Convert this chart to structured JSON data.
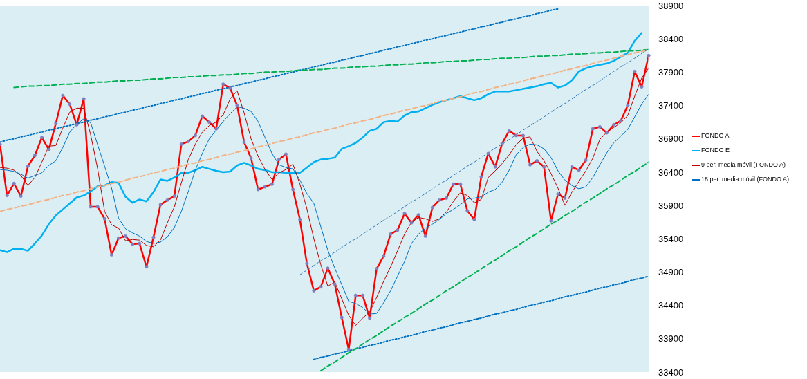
{
  "chart_data": {
    "type": "line",
    "ylim": [
      33400,
      38900
    ],
    "yticks": [
      33400,
      33900,
      34400,
      34900,
      35400,
      35900,
      36400,
      36900,
      37400,
      37900,
      38400,
      38900
    ],
    "tick_labels": "y",
    "legend": "right",
    "categories": [
      null,
      null,
      null,
      null,
      null,
      null,
      null,
      null,
      null,
      null,
      null,
      null,
      null,
      null,
      null,
      null,
      null,
      null,
      null,
      null,
      null,
      null,
      null,
      null,
      null,
      null,
      null,
      null,
      null,
      null,
      null,
      null,
      null,
      null,
      null,
      null,
      null,
      null,
      null,
      null,
      null,
      null,
      null,
      null,
      null,
      null,
      null,
      null,
      null,
      null,
      null,
      null,
      null,
      null,
      null,
      null,
      null,
      null,
      null,
      null,
      null,
      null,
      null,
      null,
      null,
      null,
      null,
      null,
      null,
      null,
      null,
      null,
      null,
      null,
      null,
      null,
      null,
      null,
      null,
      null,
      null,
      null,
      null,
      null,
      null,
      null,
      null,
      null,
      null,
      null,
      null,
      null,
      null,
      null
    ],
    "series": [
      {
        "name": "FONDO A",
        "color": "#ff0000",
        "marker": "circle",
        "line_style": "solid",
        "values": [
          36820,
          36050,
          36230,
          36040,
          36490,
          36650,
          36920,
          36740,
          37130,
          37550,
          37420,
          37110,
          37500,
          35880,
          35880,
          35700,
          35160,
          35410,
          35440,
          35320,
          35330,
          34980,
          35420,
          35910,
          35980,
          36040,
          36820,
          36860,
          36950,
          37240,
          37150,
          37050,
          37720,
          37660,
          37400,
          36850,
          36610,
          36140,
          36180,
          36220,
          36590,
          36670,
          36140,
          35690,
          35030,
          34620,
          34680,
          34960,
          34720,
          34220,
          33740,
          34550,
          34550,
          34210,
          34950,
          35140,
          35470,
          35530,
          35780,
          35640,
          35760,
          35440,
          35870,
          35980,
          36010,
          36220,
          36220,
          35820,
          35690,
          36330,
          36680,
          36480,
          36830,
          37020,
          36950,
          36950,
          36510,
          36570,
          36480,
          35670,
          36070,
          36010,
          36480,
          36430,
          36580,
          37050,
          37080,
          36990,
          37110,
          37170,
          37400,
          37910,
          37680,
          38150
        ]
      },
      {
        "name": "FONDO E",
        "color": "#00b0f0",
        "line_style": "solid",
        "values": [
          35230,
          35200,
          35250,
          35250,
          35220,
          35330,
          35450,
          35620,
          35750,
          35840,
          35930,
          36020,
          36050,
          36110,
          36190,
          36200,
          36250,
          36240,
          36030,
          35940,
          35990,
          35960,
          36100,
          36290,
          36270,
          36320,
          36390,
          36390,
          36430,
          36480,
          36450,
          36420,
          36400,
          36410,
          36500,
          36540,
          36500,
          36450,
          36430,
          36400,
          36400,
          36390,
          36390,
          36390,
          36470,
          36550,
          36590,
          36600,
          36620,
          36750,
          36790,
          36840,
          36920,
          37020,
          37050,
          37150,
          37170,
          37160,
          37250,
          37300,
          37310,
          37360,
          37410,
          37450,
          37480,
          37510,
          37540,
          37510,
          37480,
          37510,
          37570,
          37610,
          37610,
          37610,
          37630,
          37650,
          37670,
          37690,
          37720,
          37740,
          37670,
          37700,
          37780,
          37910,
          37960,
          37990,
          38010,
          38030,
          38070,
          38130,
          38190,
          38370,
          38490,
          null
        ]
      },
      {
        "name": "9 per. media móvil (FONDO A)",
        "color": "#c00000",
        "line_style": "solid",
        "values": [
          36470,
          36460,
          36430,
          36350,
          36200,
          36320,
          36550,
          36790,
          36800,
          37060,
          37300,
          37360,
          37360,
          36960,
          36450,
          35810,
          35610,
          35560,
          35370,
          35390,
          35380,
          35300,
          35280,
          35380,
          35640,
          35880,
          36240,
          36590,
          36820,
          37000,
          37100,
          37150,
          37260,
          37500,
          37620,
          37290,
          36900,
          36640,
          36440,
          36290,
          36390,
          36440,
          36520,
          36220,
          35850,
          35400,
          35010,
          34690,
          34750,
          34500,
          34250,
          34100,
          34210,
          34300,
          34520,
          34760,
          34980,
          35220,
          35470,
          35650,
          35720,
          35700,
          35660,
          35700,
          35800,
          35960,
          36090,
          36050,
          35940,
          35990,
          36320,
          36420,
          36530,
          36660,
          36810,
          36910,
          36930,
          36710,
          36570,
          36380,
          36160,
          35900,
          36100,
          36260,
          36420,
          36610,
          36890,
          37000,
          37070,
          37140,
          37250,
          37540,
          37810,
          37960
        ]
      },
      {
        "name": "18 per. media móvil (FONDO A)",
        "color": "#0070c0",
        "line_style": "solid",
        "values": [
          36440,
          36430,
          36410,
          36370,
          36310,
          36350,
          36390,
          36500,
          36570,
          36770,
          37000,
          37120,
          37200,
          37140,
          36810,
          36490,
          36160,
          35710,
          35550,
          35490,
          35440,
          35360,
          35330,
          35350,
          35430,
          35570,
          35810,
          36110,
          36430,
          36680,
          36900,
          37030,
          37160,
          37280,
          37380,
          37360,
          37310,
          37160,
          36920,
          36680,
          36510,
          36470,
          36450,
          36280,
          36080,
          35930,
          35580,
          35230,
          34960,
          34710,
          34460,
          34430,
          34370,
          34270,
          34280,
          34440,
          34620,
          34840,
          35060,
          35330,
          35470,
          35560,
          35620,
          35690,
          35780,
          35840,
          35910,
          36000,
          36010,
          36030,
          36100,
          36140,
          36250,
          36430,
          36660,
          36770,
          36820,
          36810,
          36750,
          36620,
          36420,
          36280,
          36200,
          36150,
          36180,
          36320,
          36510,
          36690,
          36840,
          36940,
          37040,
          37230,
          37420,
          37570
        ]
      },
      {
        "color": "#0070c0",
        "line_style": "dotted",
        "values": [
          36850,
          36880,
          36900,
          36930,
          36950,
          36980,
          37000,
          37030,
          37050,
          37080,
          37100,
          37130,
          37150,
          37180,
          37200,
          37230,
          37250,
          37280,
          37300,
          37330,
          37350,
          37380,
          37400,
          37430,
          37450,
          37480,
          37500,
          37530,
          37550,
          37580,
          37600,
          37630,
          37650,
          37680,
          37700,
          37730,
          37750,
          37780,
          37800,
          37830,
          37850,
          37880,
          37900,
          37930,
          37950,
          37980,
          38000,
          38030,
          38050,
          38080,
          38100,
          38130,
          38150,
          38180,
          38200,
          38230,
          38250,
          38280,
          38300,
          38330,
          38350,
          38380,
          38400,
          38430,
          38450,
          38480,
          38500,
          38530,
          38550,
          38580,
          38600,
          38630,
          38650,
          38680,
          38700,
          38730,
          38750,
          38780,
          38800,
          38830,
          38850,
          null,
          null,
          null,
          null,
          null,
          null,
          null,
          null,
          null,
          null,
          null,
          null,
          null
        ]
      },
      {
        "color": "#0070c0",
        "line_style": "dotted",
        "values": [
          null,
          null,
          null,
          null,
          null,
          null,
          null,
          null,
          null,
          null,
          null,
          null,
          null,
          null,
          null,
          null,
          null,
          null,
          null,
          null,
          null,
          null,
          null,
          null,
          null,
          null,
          null,
          null,
          null,
          null,
          null,
          null,
          null,
          null,
          null,
          null,
          null,
          null,
          null,
          null,
          null,
          null,
          null,
          null,
          null,
          33590,
          33620,
          33640,
          33670,
          33690,
          33720,
          33750,
          33770,
          33800,
          33820,
          33850,
          33880,
          33900,
          33930,
          33950,
          33980,
          34010,
          34030,
          34060,
          34080,
          34110,
          34140,
          34160,
          34190,
          34210,
          34240,
          34270,
          34290,
          34320,
          34340,
          34370,
          34400,
          34420,
          34450,
          34470,
          34500,
          34530,
          34550,
          34580,
          34600,
          34630,
          34660,
          34680,
          34710,
          34730,
          34760,
          34790,
          34810,
          34840
        ]
      },
      {
        "color": "#00b050",
        "line_style": "dashed",
        "values": [
          null,
          null,
          37670,
          37680,
          37690,
          37690,
          37700,
          37700,
          37710,
          37720,
          37720,
          37730,
          37730,
          37740,
          37750,
          37750,
          37760,
          37770,
          37770,
          37780,
          37780,
          37790,
          37800,
          37800,
          37810,
          37820,
          37820,
          37830,
          37830,
          37840,
          37850,
          37850,
          37860,
          37860,
          37870,
          37880,
          37880,
          37890,
          37900,
          37900,
          37910,
          37910,
          37920,
          37930,
          37930,
          37940,
          37940,
          37950,
          37960,
          37960,
          37970,
          37980,
          37980,
          37990,
          37990,
          38000,
          38010,
          38010,
          38020,
          38020,
          38030,
          38040,
          38040,
          38050,
          38060,
          38060,
          38070,
          38070,
          38080,
          38090,
          38090,
          38100,
          38110,
          38110,
          38120,
          38120,
          38130,
          38140,
          38140,
          38150,
          38150,
          38160,
          38170,
          38170,
          38180,
          38190,
          38190,
          38200,
          38200,
          38210,
          38220,
          38220,
          38230,
          38240
        ]
      },
      {
        "color": "#00b050",
        "line_style": "dashed",
        "values": [
          null,
          null,
          null,
          null,
          null,
          null,
          null,
          null,
          null,
          null,
          null,
          null,
          null,
          null,
          null,
          null,
          null,
          null,
          null,
          null,
          null,
          null,
          null,
          null,
          null,
          null,
          null,
          null,
          null,
          null,
          null,
          null,
          null,
          null,
          null,
          null,
          null,
          null,
          null,
          null,
          null,
          null,
          null,
          null,
          null,
          null,
          33420,
          33490,
          33550,
          33620,
          33690,
          33750,
          33820,
          33890,
          33950,
          34020,
          34090,
          34150,
          34220,
          34280,
          34350,
          34420,
          34480,
          34550,
          34620,
          34680,
          34750,
          34820,
          34880,
          34950,
          35020,
          35080,
          35150,
          35220,
          35280,
          35350,
          35420,
          35480,
          35550,
          35620,
          35680,
          35750,
          35810,
          35880,
          35950,
          36010,
          36080,
          36150,
          36210,
          36280,
          36350,
          36410,
          36480,
          36550
        ]
      },
      {
        "color": "#f4b183",
        "line_style": "dashed",
        "values": [
          35810,
          35840,
          35860,
          35890,
          35910,
          35940,
          35970,
          35990,
          36020,
          36050,
          36070,
          36100,
          36120,
          36150,
          36180,
          36200,
          36230,
          36250,
          36280,
          36310,
          36330,
          36360,
          36390,
          36410,
          36440,
          36460,
          36490,
          36520,
          36540,
          36570,
          36590,
          36620,
          36650,
          36670,
          36700,
          36720,
          36750,
          36780,
          36800,
          36830,
          36860,
          36880,
          36910,
          36930,
          36960,
          36990,
          37010,
          37040,
          37060,
          37090,
          37120,
          37140,
          37170,
          37190,
          37220,
          37250,
          37270,
          37300,
          37330,
          37350,
          37380,
          37400,
          37430,
          37460,
          37480,
          37510,
          37530,
          37560,
          37590,
          37610,
          37640,
          37670,
          37690,
          37720,
          37740,
          37770,
          37800,
          37820,
          37850,
          37870,
          37900,
          37930,
          37950,
          37980,
          38000,
          38030,
          38060,
          38080,
          38110,
          38140,
          38160,
          38190,
          38210,
          38240
        ]
      },
      {
        "color": "#2e75b6",
        "line_style": "dashed",
        "values": [
          null,
          null,
          null,
          null,
          null,
          null,
          null,
          null,
          null,
          null,
          null,
          null,
          null,
          null,
          null,
          null,
          null,
          null,
          null,
          null,
          null,
          null,
          null,
          null,
          null,
          null,
          null,
          null,
          null,
          null,
          null,
          null,
          null,
          null,
          null,
          null,
          null,
          null,
          null,
          null,
          null,
          null,
          null,
          34860,
          34930,
          35000,
          35070,
          35130,
          35200,
          35270,
          35340,
          35400,
          35470,
          35540,
          35610,
          35680,
          35740,
          35810,
          35880,
          35950,
          36010,
          36080,
          36150,
          36220,
          36280,
          36350,
          36420,
          36490,
          36550,
          36620,
          36690,
          36760,
          36820,
          36890,
          36960,
          37030,
          37100,
          37160,
          37230,
          37300,
          37370,
          37430,
          37500,
          37570,
          37640,
          37700,
          37770,
          37840,
          37910,
          37980,
          38040,
          38110,
          38180,
          38250
        ]
      }
    ]
  }
}
